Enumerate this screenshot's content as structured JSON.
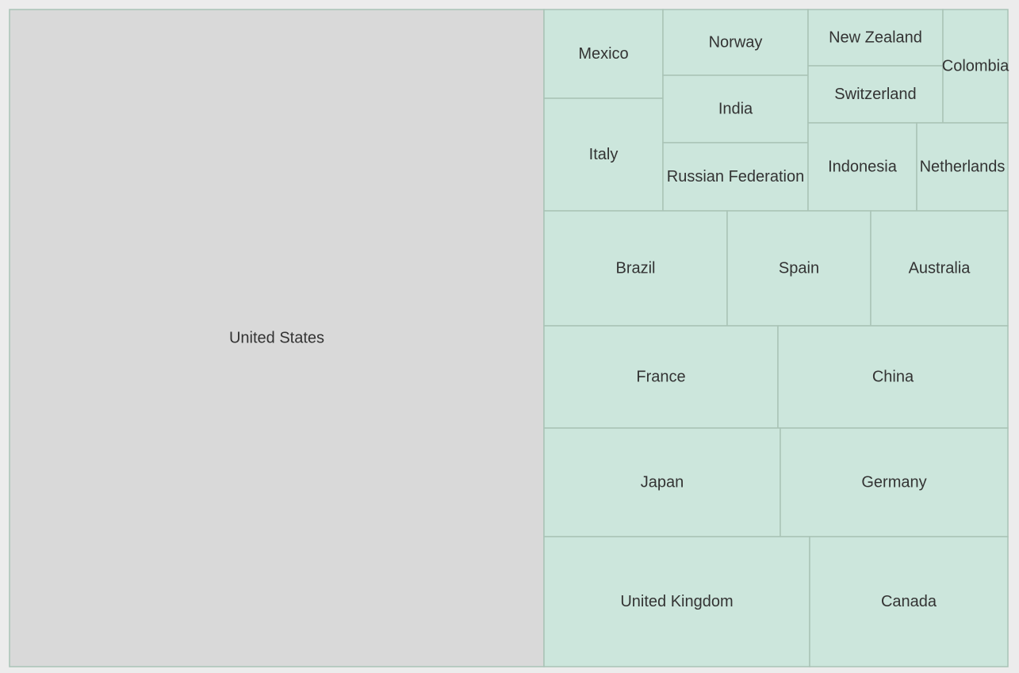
{
  "chart_data": {
    "type": "treemap",
    "title": "",
    "nodes": [
      {
        "name": "United States",
        "value": 560
      },
      {
        "name": "United Kingdom",
        "value": 54
      },
      {
        "name": "Canada",
        "value": 41
      },
      {
        "name": "Japan",
        "value": 40
      },
      {
        "name": "Germany",
        "value": 39
      },
      {
        "name": "France",
        "value": 38
      },
      {
        "name": "China",
        "value": 37
      },
      {
        "name": "Brazil",
        "value": 33
      },
      {
        "name": "Spain",
        "value": 26
      },
      {
        "name": "Australia",
        "value": 25
      },
      {
        "name": "Italy",
        "value": 21
      },
      {
        "name": "Mexico",
        "value": 17
      },
      {
        "name": "Russian Federation",
        "value": 15
      },
      {
        "name": "India",
        "value": 15
      },
      {
        "name": "Norway",
        "value": 15
      },
      {
        "name": "Indonesia",
        "value": 15
      },
      {
        "name": "Netherlands",
        "value": 12
      },
      {
        "name": "Switzerland",
        "value": 12
      },
      {
        "name": "New Zealand",
        "value": 12
      },
      {
        "name": "Colombia",
        "value": 9
      }
    ],
    "colors": {
      "highlighted_fill": "#d9d9d9",
      "fill": "#cce6dc",
      "stroke": "#a9c3b6",
      "background": "#ececec",
      "label": "#333333"
    }
  }
}
